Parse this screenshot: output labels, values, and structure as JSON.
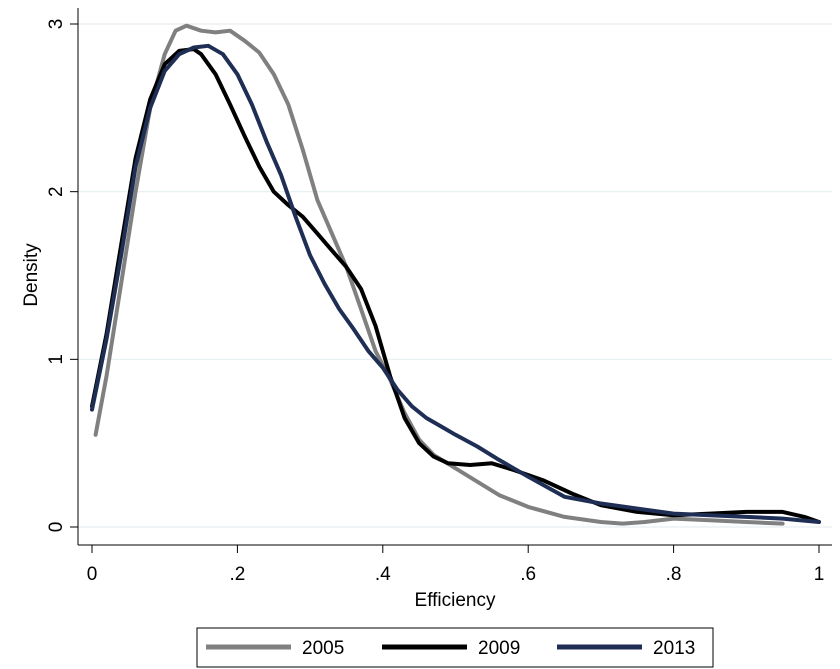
{
  "chart_data": {
    "type": "line",
    "xlabel": "Efficiency",
    "ylabel": "Density",
    "xlim": [
      0,
      1
    ],
    "ylim": [
      0,
      3
    ],
    "xticks": [
      {
        "value": 0,
        "label": "0"
      },
      {
        "value": 0.2,
        "label": ".2"
      },
      {
        "value": 0.4,
        "label": ".4"
      },
      {
        "value": 0.6,
        "label": ".6"
      },
      {
        "value": 0.8,
        "label": ".8"
      },
      {
        "value": 1,
        "label": "1"
      }
    ],
    "yticks": [
      {
        "value": 0,
        "label": "0"
      },
      {
        "value": 1,
        "label": "1"
      },
      {
        "value": 2,
        "label": "2"
      },
      {
        "value": 3,
        "label": "3"
      }
    ],
    "grid": "horizontal",
    "legend_position": "bottom",
    "series": [
      {
        "name": "2005",
        "color": "#808080",
        "x": [
          0.005,
          0.02,
          0.04,
          0.06,
          0.08,
          0.1,
          0.115,
          0.13,
          0.15,
          0.17,
          0.19,
          0.21,
          0.23,
          0.25,
          0.27,
          0.29,
          0.31,
          0.33,
          0.35,
          0.37,
          0.39,
          0.41,
          0.43,
          0.45,
          0.47,
          0.5,
          0.53,
          0.56,
          0.6,
          0.65,
          0.7,
          0.73,
          0.76,
          0.8,
          0.85,
          0.9,
          0.95
        ],
        "y": [
          0.55,
          0.9,
          1.45,
          2.0,
          2.5,
          2.82,
          2.96,
          2.99,
          2.96,
          2.95,
          2.96,
          2.9,
          2.83,
          2.7,
          2.52,
          2.25,
          1.95,
          1.75,
          1.55,
          1.3,
          1.05,
          0.88,
          0.68,
          0.52,
          0.43,
          0.35,
          0.27,
          0.19,
          0.12,
          0.06,
          0.03,
          0.02,
          0.03,
          0.05,
          0.04,
          0.03,
          0.02
        ]
      },
      {
        "name": "2009",
        "color": "#000000",
        "x": [
          0.0,
          0.02,
          0.04,
          0.06,
          0.08,
          0.1,
          0.12,
          0.14,
          0.15,
          0.17,
          0.19,
          0.21,
          0.23,
          0.25,
          0.27,
          0.29,
          0.31,
          0.33,
          0.35,
          0.37,
          0.39,
          0.41,
          0.43,
          0.45,
          0.47,
          0.49,
          0.52,
          0.55,
          0.58,
          0.62,
          0.66,
          0.7,
          0.75,
          0.8,
          0.85,
          0.9,
          0.95,
          0.98,
          1.0
        ],
        "y": [
          0.72,
          1.15,
          1.68,
          2.2,
          2.55,
          2.76,
          2.84,
          2.85,
          2.82,
          2.7,
          2.52,
          2.33,
          2.15,
          2.0,
          1.92,
          1.85,
          1.75,
          1.65,
          1.55,
          1.42,
          1.2,
          0.9,
          0.65,
          0.5,
          0.42,
          0.38,
          0.37,
          0.38,
          0.34,
          0.28,
          0.2,
          0.13,
          0.09,
          0.07,
          0.08,
          0.09,
          0.09,
          0.06,
          0.03
        ]
      },
      {
        "name": "2013",
        "color": "#1f2e54",
        "x": [
          0.0,
          0.02,
          0.04,
          0.06,
          0.08,
          0.1,
          0.12,
          0.14,
          0.16,
          0.18,
          0.2,
          0.22,
          0.24,
          0.26,
          0.28,
          0.3,
          0.32,
          0.34,
          0.36,
          0.38,
          0.4,
          0.42,
          0.44,
          0.46,
          0.48,
          0.5,
          0.53,
          0.56,
          0.6,
          0.65,
          0.7,
          0.75,
          0.8,
          0.85,
          0.9,
          0.95,
          1.0
        ],
        "y": [
          0.7,
          1.12,
          1.62,
          2.15,
          2.5,
          2.72,
          2.82,
          2.86,
          2.87,
          2.82,
          2.7,
          2.52,
          2.3,
          2.1,
          1.85,
          1.62,
          1.45,
          1.3,
          1.18,
          1.05,
          0.95,
          0.82,
          0.72,
          0.65,
          0.6,
          0.55,
          0.48,
          0.4,
          0.3,
          0.18,
          0.14,
          0.11,
          0.08,
          0.07,
          0.06,
          0.05,
          0.03
        ]
      }
    ]
  }
}
